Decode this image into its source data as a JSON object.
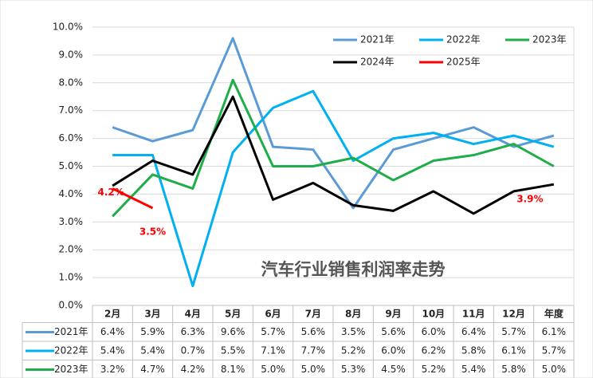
{
  "chart_data": {
    "type": "line",
    "title": "汽车行业销售利润率走势",
    "categories": [
      "2月",
      "3月",
      "4月",
      "5月",
      "6月",
      "7月",
      "8月",
      "9月",
      "10月",
      "11月",
      "12月",
      "年度"
    ],
    "series": [
      {
        "name": "2021年",
        "color": "#5b9bd5",
        "values": [
          6.4,
          5.9,
          6.3,
          9.6,
          5.7,
          5.6,
          3.5,
          5.6,
          6.0,
          6.4,
          5.7,
          6.1
        ],
        "value_labels": [
          "6.4%",
          "5.9%",
          "6.3%",
          "9.6%",
          "5.7%",
          "5.6%",
          "3.5%",
          "5.6%",
          "6.0%",
          "6.4%",
          "5.7%",
          "6.1%"
        ]
      },
      {
        "name": "2022年",
        "color": "#00b0f0",
        "values": [
          5.4,
          5.4,
          0.7,
          5.5,
          7.1,
          7.7,
          5.2,
          6.0,
          6.2,
          5.8,
          6.1,
          5.7
        ],
        "value_labels": [
          "5.4%",
          "5.4%",
          "0.7%",
          "5.5%",
          "7.1%",
          "7.7%",
          "5.2%",
          "6.0%",
          "6.2%",
          "5.8%",
          "6.1%",
          "5.7%"
        ]
      },
      {
        "name": "2023年",
        "color": "#1fad4a",
        "values": [
          3.2,
          4.7,
          4.2,
          8.1,
          5.0,
          5.0,
          5.3,
          4.5,
          5.2,
          5.4,
          5.8,
          5.0
        ],
        "value_labels": [
          "3.2%",
          "4.7%",
          "4.2%",
          "8.1%",
          "5.0%",
          "5.0%",
          "5.3%",
          "4.5%",
          "5.2%",
          "5.4%",
          "5.8%",
          "5.0%"
        ]
      },
      {
        "name": "2024年",
        "color": "#000000",
        "values": [
          4.3,
          5.2,
          4.7,
          7.5,
          3.8,
          4.4,
          3.6,
          3.4,
          4.1,
          3.3,
          4.1,
          4.35
        ]
      },
      {
        "name": "2025年",
        "color": "#ff0000",
        "values": [
          4.2,
          3.5,
          null,
          null,
          null,
          null,
          null,
          null,
          null,
          null,
          null,
          null
        ]
      }
    ],
    "annotations": [
      {
        "text": "4.2%",
        "category": 0,
        "value": 4.2
      },
      {
        "text": "3.5%",
        "category": 1,
        "value": 3.5
      },
      {
        "text": "3.9%",
        "category": 11,
        "value": 3.9
      }
    ],
    "annotation_color": "#ff0000",
    "ylim": [
      0,
      10
    ],
    "yticks": [
      {
        "value": 0,
        "label": "0.0%"
      },
      {
        "value": 1,
        "label": "1.0%"
      },
      {
        "value": 2,
        "label": "2.0%"
      },
      {
        "value": 3,
        "label": "3.0%"
      },
      {
        "value": 4,
        "label": "4.0%"
      },
      {
        "value": 5,
        "label": "5.0%"
      },
      {
        "value": 6,
        "label": "6.0%"
      },
      {
        "value": 7,
        "label": "7.0%"
      },
      {
        "value": 8,
        "label": "8.0%"
      },
      {
        "value": 9,
        "label": "9.0%"
      },
      {
        "value": 10,
        "label": "10.0%"
      }
    ],
    "grid": true
  }
}
